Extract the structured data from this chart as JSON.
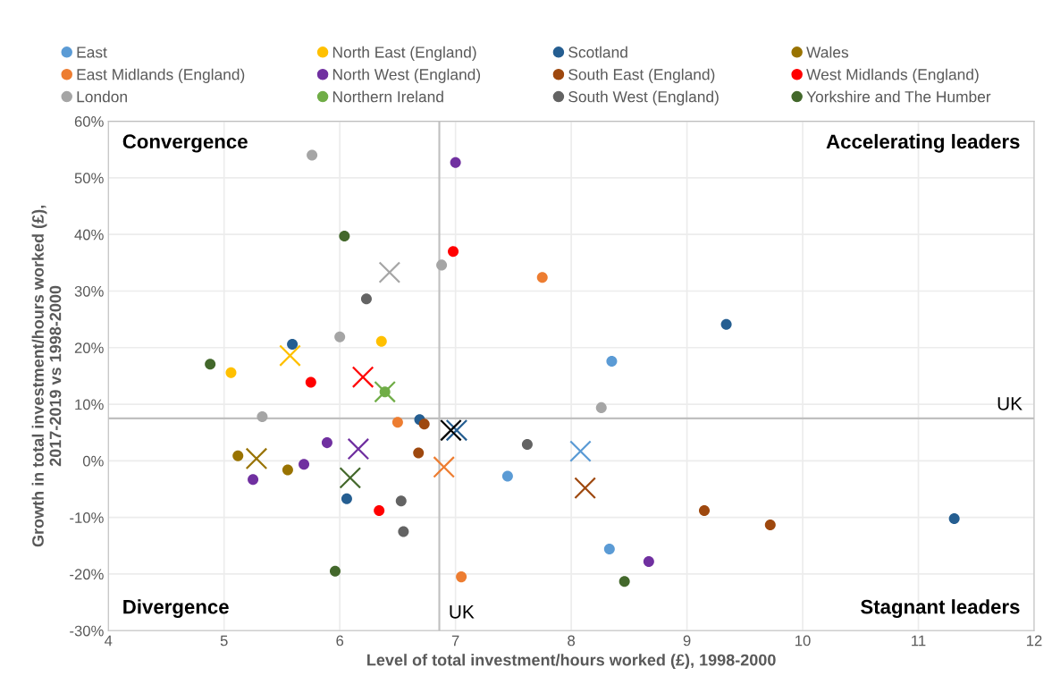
{
  "chart_data": {
    "type": "scatter",
    "xlabel": "Level of total investment/hours worked (£), 1998-2000",
    "ylabel": "Growth in total investment/hours worked (£),\n2017-2019 vs 1998-2000",
    "xlim": [
      4,
      12
    ],
    "xticks": [
      4,
      5,
      6,
      7,
      8,
      9,
      10,
      11,
      12
    ],
    "ylim": [
      -30,
      60
    ],
    "yticks": [
      {
        "value": -30,
        "label": "-30%"
      },
      {
        "value": -20,
        "label": "-20%"
      },
      {
        "value": -10,
        "label": "-10%"
      },
      {
        "value": 0,
        "label": "0%"
      },
      {
        "value": 10,
        "label": "10%"
      },
      {
        "value": 20,
        "label": "20%"
      },
      {
        "value": 30,
        "label": "30%"
      },
      {
        "value": 40,
        "label": "40%"
      },
      {
        "value": 50,
        "label": "50%"
      },
      {
        "value": 60,
        "label": "60%"
      }
    ],
    "grid": true,
    "legend": "top",
    "ref_lines": [
      {
        "axis": "x",
        "value": 6.86,
        "label": "UK",
        "color": "#bfbfbf"
      },
      {
        "axis": "y",
        "value": 7.5,
        "label": "UK",
        "color": "#bfbfbf"
      }
    ],
    "annotations": [
      "Convergence",
      "Accelerating leaders",
      "Divergence",
      "Stagnant leaders"
    ],
    "series": [
      {
        "name": "East",
        "color": "#5b9bd5",
        "marker": "circle",
        "x": [
          8.35,
          7.45,
          8.33
        ],
        "values": [
          17.6,
          -2.7,
          -15.6
        ]
      },
      {
        "name": "East Midlands (England)",
        "color": "#ed7d31",
        "marker": "circle",
        "x": [
          7.75,
          6.5,
          7.05
        ],
        "values": [
          32.4,
          6.8,
          -20.5
        ]
      },
      {
        "name": "London",
        "color": "#a5a5a5",
        "marker": "circle",
        "x": [
          5.76,
          6.0,
          6.88,
          5.33,
          8.26
        ],
        "values": [
          54.0,
          21.9,
          34.6,
          7.8,
          9.4
        ]
      },
      {
        "name": "North East (England)",
        "color": "#ffc000",
        "marker": "circle",
        "x": [
          5.06,
          6.36
        ],
        "values": [
          15.6,
          21.1
        ]
      },
      {
        "name": "North West (England)",
        "color": "#7030a0",
        "marker": "circle",
        "x": [
          7.0,
          5.89,
          5.69,
          5.25,
          8.67
        ],
        "values": [
          52.7,
          3.2,
          -0.6,
          -3.3,
          -17.8
        ]
      },
      {
        "name": "Northern Ireland",
        "color": "#70ad47",
        "marker": "circle",
        "x": [
          6.39
        ],
        "values": [
          12.2
        ]
      },
      {
        "name": "Scotland",
        "color": "#255e91",
        "marker": "circle",
        "x": [
          5.59,
          6.69,
          6.06,
          9.34,
          11.31
        ],
        "values": [
          20.6,
          7.3,
          -6.7,
          24.1,
          -10.2
        ]
      },
      {
        "name": "South East (England)",
        "color": "#9e480e",
        "marker": "circle",
        "x": [
          6.73,
          6.68,
          9.15,
          9.72
        ],
        "values": [
          6.5,
          1.4,
          -8.8,
          -11.3
        ]
      },
      {
        "name": "South West (England)",
        "color": "#636363",
        "marker": "circle",
        "x": [
          6.23,
          6.53,
          6.55,
          7.62
        ],
        "values": [
          28.6,
          -7.1,
          -12.5,
          2.9
        ]
      },
      {
        "name": "Wales",
        "color": "#997300",
        "marker": "circle",
        "x": [
          5.12,
          5.55
        ],
        "values": [
          0.9,
          -1.6
        ]
      },
      {
        "name": "West Midlands (England)",
        "color": "#ff0000",
        "marker": "circle",
        "x": [
          6.98,
          5.75,
          6.34
        ],
        "values": [
          37.0,
          13.9,
          -8.8
        ]
      },
      {
        "name": "Yorkshire and The Humber",
        "color": "#43682b",
        "marker": "circle",
        "x": [
          4.88,
          6.04,
          5.96,
          8.46
        ],
        "values": [
          17.1,
          39.7,
          -19.5,
          -21.3
        ]
      },
      {
        "color": "#5b9bd5",
        "marker": "cross",
        "x": [
          8.08
        ],
        "values": [
          1.7
        ]
      },
      {
        "color": "#ed7d31",
        "marker": "cross",
        "x": [
          6.9
        ],
        "values": [
          -1.1
        ]
      },
      {
        "color": "#a5a5a5",
        "marker": "cross",
        "x": [
          6.43
        ],
        "values": [
          33.3
        ]
      },
      {
        "color": "#ffc000",
        "marker": "cross",
        "x": [
          5.57
        ],
        "values": [
          18.6
        ]
      },
      {
        "color": "#7030a0",
        "marker": "cross",
        "x": [
          6.16
        ],
        "values": [
          2.1
        ]
      },
      {
        "color": "#70ad47",
        "marker": "cross",
        "x": [
          6.39
        ],
        "values": [
          12.2
        ]
      },
      {
        "color": "#255e91",
        "marker": "cross",
        "x": [
          7.01
        ],
        "values": [
          5.4
        ]
      },
      {
        "color": "#9e480e",
        "marker": "cross",
        "x": [
          8.12
        ],
        "values": [
          -4.8
        ]
      },
      {
        "color": "#000000",
        "marker": "cross",
        "x": [
          6.96
        ],
        "values": [
          5.4
        ]
      },
      {
        "color": "#997300",
        "marker": "cross",
        "x": [
          5.28
        ],
        "values": [
          0.4
        ]
      },
      {
        "color": "#ff0000",
        "marker": "cross",
        "x": [
          6.2
        ],
        "values": [
          14.8
        ]
      },
      {
        "color": "#43682b",
        "marker": "cross",
        "x": [
          6.09
        ],
        "values": [
          -3.0
        ]
      }
    ]
  }
}
